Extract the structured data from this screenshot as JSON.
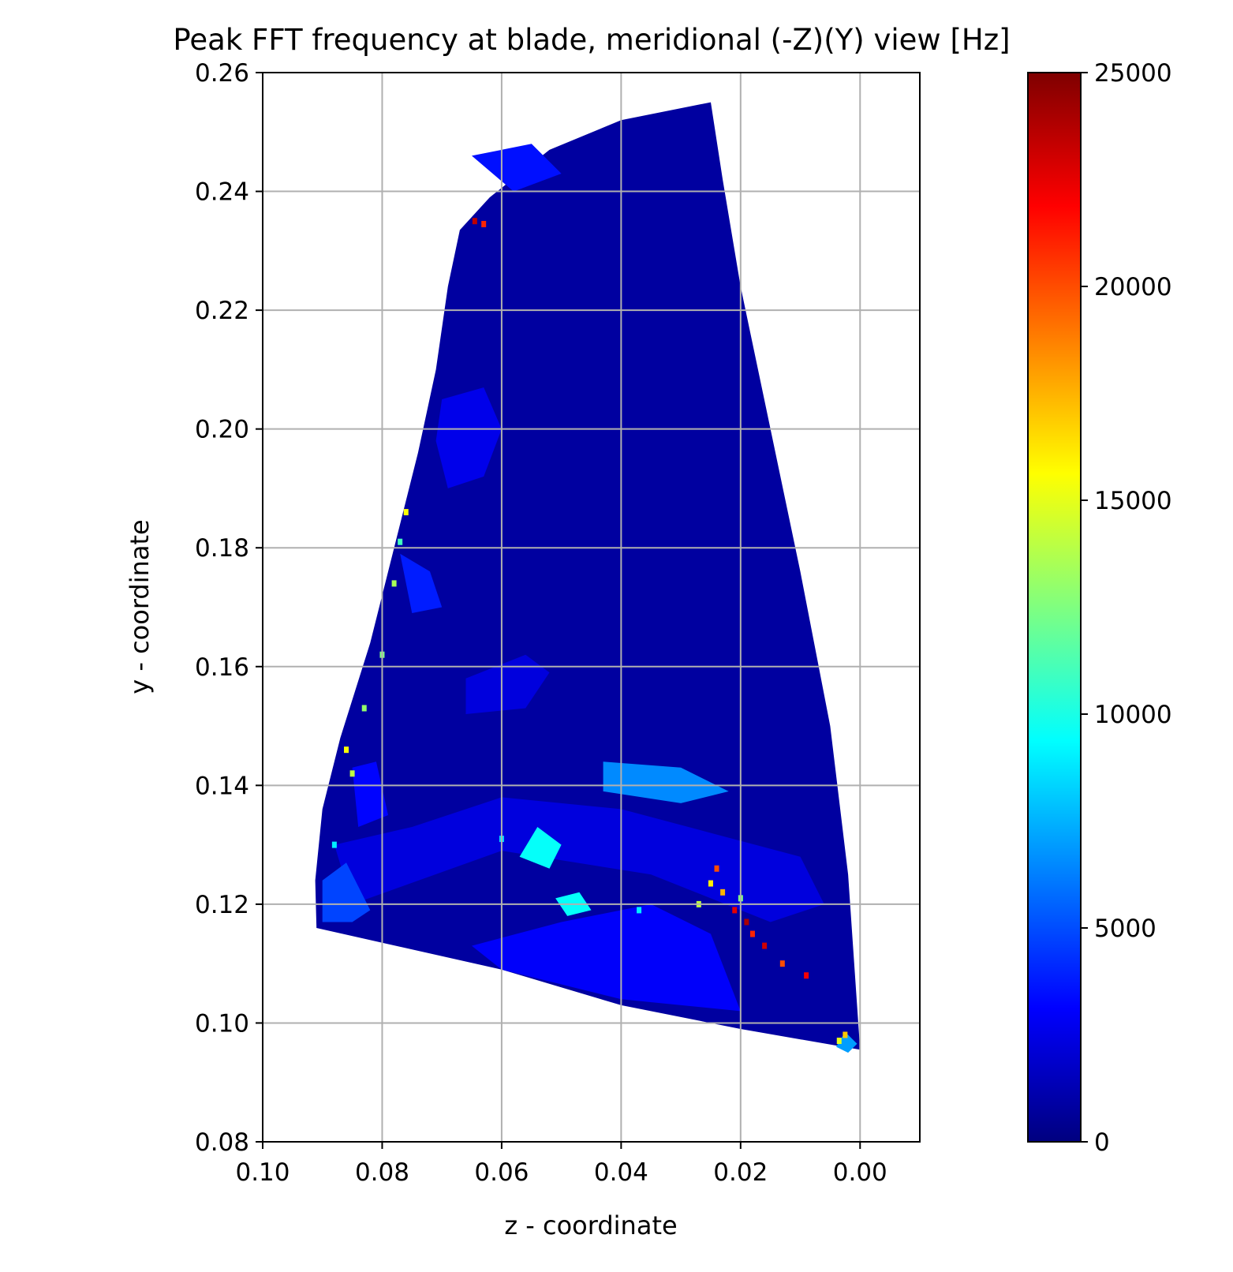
{
  "chart_data": {
    "type": "scatter",
    "title": "Peak FFT frequency at blade, meridional (-Z)(Y) view [Hz]",
    "xlabel": "z - coordinate",
    "ylabel": "y - coordinate",
    "xlim": [
      0.1,
      -0.01
    ],
    "ylim": [
      0.08,
      0.26
    ],
    "x_axis_inverted": true,
    "grid": true,
    "x_ticks": [
      0.1,
      0.08,
      0.06,
      0.04,
      0.02,
      0.0
    ],
    "x_tick_labels": [
      "0.10",
      "0.08",
      "0.06",
      "0.04",
      "0.02",
      "0.00"
    ],
    "y_ticks": [
      0.08,
      0.1,
      0.12,
      0.14,
      0.16,
      0.18,
      0.2,
      0.22,
      0.24,
      0.26
    ],
    "y_tick_labels": [
      "0.08",
      "0.10",
      "0.12",
      "0.14",
      "0.16",
      "0.18",
      "0.20",
      "0.22",
      "0.24",
      "0.26"
    ],
    "colormap": "jet",
    "colorbar": {
      "range": [
        0,
        25000
      ],
      "ticks": [
        0,
        5000,
        10000,
        15000,
        20000,
        25000
      ],
      "tick_labels": [
        "0",
        "5000",
        "10000",
        "15000",
        "20000",
        "25000"
      ]
    },
    "blade_outline": [
      [
        0.091,
        0.116
      ],
      [
        0.0912,
        0.124
      ],
      [
        0.09,
        0.136
      ],
      [
        0.087,
        0.148
      ],
      [
        0.082,
        0.164
      ],
      [
        0.078,
        0.18
      ],
      [
        0.074,
        0.196
      ],
      [
        0.071,
        0.21
      ],
      [
        0.069,
        0.224
      ],
      [
        0.067,
        0.2335
      ],
      [
        0.062,
        0.239
      ],
      [
        0.052,
        0.247
      ],
      [
        0.04,
        0.252
      ],
      [
        0.025,
        0.255
      ],
      [
        0.023,
        0.242
      ],
      [
        0.02,
        0.224
      ],
      [
        0.015,
        0.2
      ],
      [
        0.01,
        0.176
      ],
      [
        0.005,
        0.15
      ],
      [
        0.002,
        0.125
      ],
      [
        0.0,
        0.0955
      ],
      [
        0.02,
        0.099
      ],
      [
        0.04,
        0.103
      ],
      [
        0.06,
        0.109
      ],
      [
        0.08,
        0.1135
      ],
      [
        0.091,
        0.116
      ]
    ],
    "blade_base_value": 800,
    "regions": [
      {
        "value": 2600,
        "points": [
          [
            0.07,
            0.205
          ],
          [
            0.063,
            0.207
          ],
          [
            0.06,
            0.2
          ],
          [
            0.063,
            0.192
          ],
          [
            0.069,
            0.19
          ],
          [
            0.071,
            0.198
          ]
        ]
      },
      {
        "value": 2300,
        "points": [
          [
            0.066,
            0.158
          ],
          [
            0.056,
            0.162
          ],
          [
            0.052,
            0.159
          ],
          [
            0.056,
            0.153
          ],
          [
            0.066,
            0.152
          ]
        ]
      },
      {
        "value": 3000,
        "points": [
          [
            0.065,
            0.113
          ],
          [
            0.05,
            0.117
          ],
          [
            0.035,
            0.12
          ],
          [
            0.025,
            0.115
          ],
          [
            0.02,
            0.102
          ],
          [
            0.04,
            0.104
          ],
          [
            0.06,
            0.109
          ]
        ]
      },
      {
        "value": 2300,
        "points": [
          [
            0.088,
            0.13
          ],
          [
            0.075,
            0.133
          ],
          [
            0.06,
            0.138
          ],
          [
            0.04,
            0.136
          ],
          [
            0.025,
            0.132
          ],
          [
            0.01,
            0.128
          ],
          [
            0.006,
            0.12
          ],
          [
            0.015,
            0.117
          ],
          [
            0.035,
            0.125
          ],
          [
            0.06,
            0.129
          ],
          [
            0.085,
            0.12
          ]
        ]
      },
      {
        "value": 6500,
        "points": [
          [
            0.043,
            0.144
          ],
          [
            0.03,
            0.143
          ],
          [
            0.022,
            0.139
          ],
          [
            0.03,
            0.137
          ],
          [
            0.043,
            0.139
          ]
        ]
      },
      {
        "value": 4800,
        "points": [
          [
            0.09,
            0.124
          ],
          [
            0.086,
            0.127
          ],
          [
            0.082,
            0.119
          ],
          [
            0.085,
            0.117
          ],
          [
            0.09,
            0.117
          ]
        ]
      },
      {
        "value": 3200,
        "points": [
          [
            0.085,
            0.143
          ],
          [
            0.081,
            0.144
          ],
          [
            0.079,
            0.135
          ],
          [
            0.084,
            0.133
          ]
        ]
      },
      {
        "value": 3500,
        "points": [
          [
            0.065,
            0.246
          ],
          [
            0.055,
            0.248
          ],
          [
            0.05,
            0.243
          ],
          [
            0.058,
            0.24
          ]
        ]
      },
      {
        "value": 3800,
        "points": [
          [
            0.077,
            0.179
          ],
          [
            0.072,
            0.176
          ],
          [
            0.07,
            0.17
          ],
          [
            0.075,
            0.169
          ]
        ]
      },
      {
        "value": 9500,
        "points": [
          [
            0.054,
            0.133
          ],
          [
            0.05,
            0.13
          ],
          [
            0.052,
            0.126
          ],
          [
            0.057,
            0.128
          ]
        ]
      },
      {
        "value": 9500,
        "points": [
          [
            0.051,
            0.121
          ],
          [
            0.047,
            0.122
          ],
          [
            0.045,
            0.119
          ],
          [
            0.049,
            0.118
          ]
        ]
      },
      {
        "value": 7000,
        "points": [
          [
            0.0025,
            0.0985
          ],
          [
            0.0005,
            0.0965
          ],
          [
            0.002,
            0.095
          ],
          [
            0.004,
            0.096
          ]
        ]
      }
    ],
    "hot_spots": [
      {
        "z": 0.021,
        "y": 0.119,
        "value": 22500
      },
      {
        "z": 0.019,
        "y": 0.117,
        "value": 24000
      },
      {
        "z": 0.018,
        "y": 0.115,
        "value": 21000
      },
      {
        "z": 0.023,
        "y": 0.122,
        "value": 17500
      },
      {
        "z": 0.024,
        "y": 0.126,
        "value": 20000
      },
      {
        "z": 0.025,
        "y": 0.1235,
        "value": 16000
      },
      {
        "z": 0.016,
        "y": 0.113,
        "value": 23000
      },
      {
        "z": 0.013,
        "y": 0.11,
        "value": 20000
      },
      {
        "z": 0.009,
        "y": 0.108,
        "value": 22000
      },
      {
        "z": 0.027,
        "y": 0.12,
        "value": 14000
      },
      {
        "z": 0.02,
        "y": 0.121,
        "value": 12500
      },
      {
        "z": 0.0645,
        "y": 0.235,
        "value": 23500
      },
      {
        "z": 0.063,
        "y": 0.2345,
        "value": 21000
      },
      {
        "z": 0.0025,
        "y": 0.098,
        "value": 17000
      },
      {
        "z": 0.0035,
        "y": 0.097,
        "value": 15000
      },
      {
        "z": 0.086,
        "y": 0.146,
        "value": 15500
      },
      {
        "z": 0.085,
        "y": 0.142,
        "value": 14000
      },
      {
        "z": 0.083,
        "y": 0.153,
        "value": 13000
      },
      {
        "z": 0.08,
        "y": 0.162,
        "value": 12500
      },
      {
        "z": 0.078,
        "y": 0.174,
        "value": 13500
      },
      {
        "z": 0.077,
        "y": 0.181,
        "value": 11000
      },
      {
        "z": 0.076,
        "y": 0.186,
        "value": 15500
      },
      {
        "z": 0.088,
        "y": 0.13,
        "value": 9000
      },
      {
        "z": 0.06,
        "y": 0.131,
        "value": 8500
      },
      {
        "z": 0.037,
        "y": 0.119,
        "value": 9000
      }
    ]
  }
}
